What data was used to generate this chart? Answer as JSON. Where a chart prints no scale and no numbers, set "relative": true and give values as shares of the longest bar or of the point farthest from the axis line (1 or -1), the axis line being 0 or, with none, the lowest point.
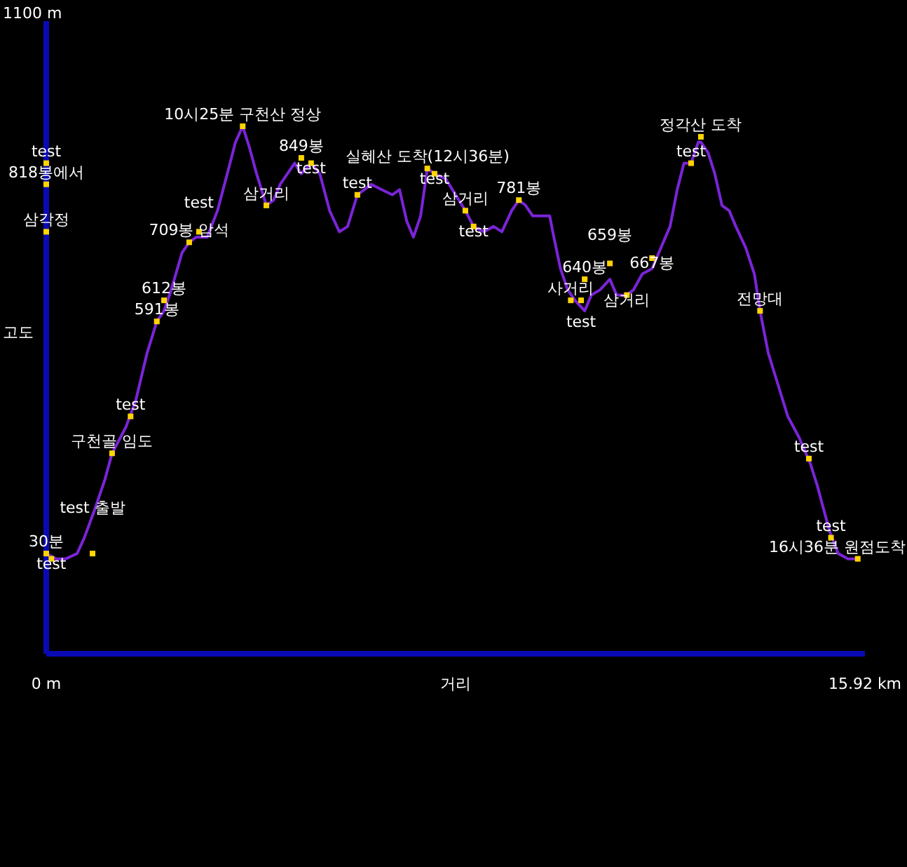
{
  "chart_data": {
    "type": "line",
    "xlabel": "거리",
    "ylabel": "고도",
    "relative": true,
    "xlim": [
      0,
      15.92
    ],
    "xticks": [
      {
        "value": 0,
        "label": "0 m"
      },
      {
        "value": 15.92,
        "label": "15.92 km"
      }
    ],
    "color": "#7b24d8",
    "x": [
      0,
      0.19,
      0.38,
      0.6,
      0.74,
      0.93,
      1.14,
      1.28,
      1.55,
      1.74,
      1.96,
      2.15,
      2.29,
      2.43,
      2.64,
      2.78,
      2.92,
      3.13,
      3.33,
      3.52,
      3.68,
      3.82,
      3.95,
      4.09,
      4.28,
      4.42,
      4.55,
      4.83,
      4.96,
      5.15,
      5.32,
      5.51,
      5.7,
      5.86,
      6.05,
      6.19,
      6.32,
      6.52,
      6.73,
      6.87,
      7.01,
      7.14,
      7.28,
      7.41,
      7.55,
      7.77,
      7.96,
      8.15,
      8.31,
      8.51,
      8.7,
      8.86,
      9.05,
      9.19,
      9.32,
      9.46,
      9.79,
      9.87,
      10.0,
      10.14,
      10.28,
      10.47,
      10.6,
      10.77,
      10.96,
      11.09,
      11.29,
      11.42,
      11.59,
      11.78,
      11.91,
      12.13,
      12.27,
      12.4,
      12.54,
      12.68,
      12.73,
      12.87,
      13.0,
      13.14,
      13.28,
      13.41,
      13.6,
      13.77,
      13.88,
      14.04,
      14.23,
      14.42,
      14.64,
      14.86,
      14.99,
      15.1,
      15.24,
      15.4,
      15.59,
      15.78
    ],
    "values": [
      0.19,
      0.18,
      0.18,
      0.19,
      0.22,
      0.27,
      0.33,
      0.38,
      0.43,
      0.48,
      0.57,
      0.63,
      0.65,
      0.69,
      0.76,
      0.78,
      0.79,
      0.79,
      0.84,
      0.91,
      0.97,
      1,
      0.96,
      0.91,
      0.85,
      0.86,
      0.89,
      0.93,
      0.91,
      0.93,
      0.91,
      0.84,
      0.8,
      0.81,
      0.87,
      0.88,
      0.89,
      0.88,
      0.87,
      0.88,
      0.82,
      0.79,
      0.83,
      0.92,
      0.91,
      0.9,
      0.87,
      0.84,
      0.81,
      0.8,
      0.81,
      0.8,
      0.84,
      0.86,
      0.85,
      0.83,
      0.83,
      0.79,
      0.73,
      0.69,
      0.67,
      0.65,
      0.68,
      0.69,
      0.71,
      0.68,
      0.68,
      0.69,
      0.72,
      0.73,
      0.76,
      0.81,
      0.88,
      0.93,
      0.93,
      0.97,
      0.97,
      0.95,
      0.91,
      0.85,
      0.84,
      0.81,
      0.77,
      0.72,
      0.65,
      0.57,
      0.51,
      0.45,
      0.41,
      0.36,
      0.32,
      0.28,
      0.23,
      0.19,
      0.18,
      0.18
    ],
    "annotations": [
      "1100 m",
      {
        "text": "test",
        "x": 0,
        "y": 0.93
      },
      {
        "text": "818봉에서",
        "x": 0,
        "y": 0.89
      },
      {
        "text": "삼각정",
        "x": 0,
        "y": 0.8
      },
      {
        "text": "30분",
        "x": 0,
        "y": 0.19
      },
      {
        "text": "test",
        "x": 0.1,
        "y": 0.18
      },
      {
        "text": "test 출발",
        "x": 0.9,
        "y": 0.19
      },
      {
        "text": "구천골 임도",
        "x": 1.28,
        "y": 0.38
      },
      {
        "text": "test",
        "x": 1.64,
        "y": 0.45
      },
      {
        "text": "612봉",
        "x": 2.29,
        "y": 0.67
      },
      {
        "text": "591봉",
        "x": 2.15,
        "y": 0.63
      },
      {
        "text": "709봉 암석",
        "x": 2.78,
        "y": 0.78
      },
      {
        "text": "test",
        "x": 2.97,
        "y": 0.8
      },
      {
        "text": "10시25분 구천산 정상",
        "x": 3.82,
        "y": 1
      },
      {
        "text": "삼거리",
        "x": 4.28,
        "y": 0.85
      },
      {
        "text": "849봉",
        "x": 4.96,
        "y": 0.94
      },
      {
        "text": "test",
        "x": 5.15,
        "y": 0.93
      },
      {
        "text": "test",
        "x": 6.05,
        "y": 0.87
      },
      {
        "text": "실혜산 도착(12시36분)",
        "x": 7.41,
        "y": 0.92
      },
      {
        "text": "test",
        "x": 7.55,
        "y": 0.91
      },
      {
        "text": "삼거리",
        "x": 8.15,
        "y": 0.84
      },
      {
        "text": "test",
        "x": 8.31,
        "y": 0.81
      },
      {
        "text": "781봉",
        "x": 9.19,
        "y": 0.86
      },
      {
        "text": "사거리",
        "x": 10.2,
        "y": 0.67
      },
      {
        "text": "test",
        "x": 10.4,
        "y": 0.67
      },
      {
        "text": "640봉",
        "x": 10.47,
        "y": 0.71
      },
      {
        "text": "659봉",
        "x": 10.96,
        "y": 0.74
      },
      {
        "text": "삼거리",
        "x": 11.29,
        "y": 0.68
      },
      {
        "text": "667봉",
        "x": 11.78,
        "y": 0.75
      },
      {
        "text": "test",
        "x": 12.54,
        "y": 0.93
      },
      {
        "text": "정각산 도착",
        "x": 12.73,
        "y": 0.98
      },
      {
        "text": "전망대",
        "x": 13.88,
        "y": 0.65
      },
      {
        "text": "test",
        "x": 14.83,
        "y": 0.37
      },
      {
        "text": "test",
        "x": 15.26,
        "y": 0.22
      },
      {
        "text": "16시36분 원점도착",
        "x": 15.78,
        "y": 0.18
      }
    ]
  }
}
